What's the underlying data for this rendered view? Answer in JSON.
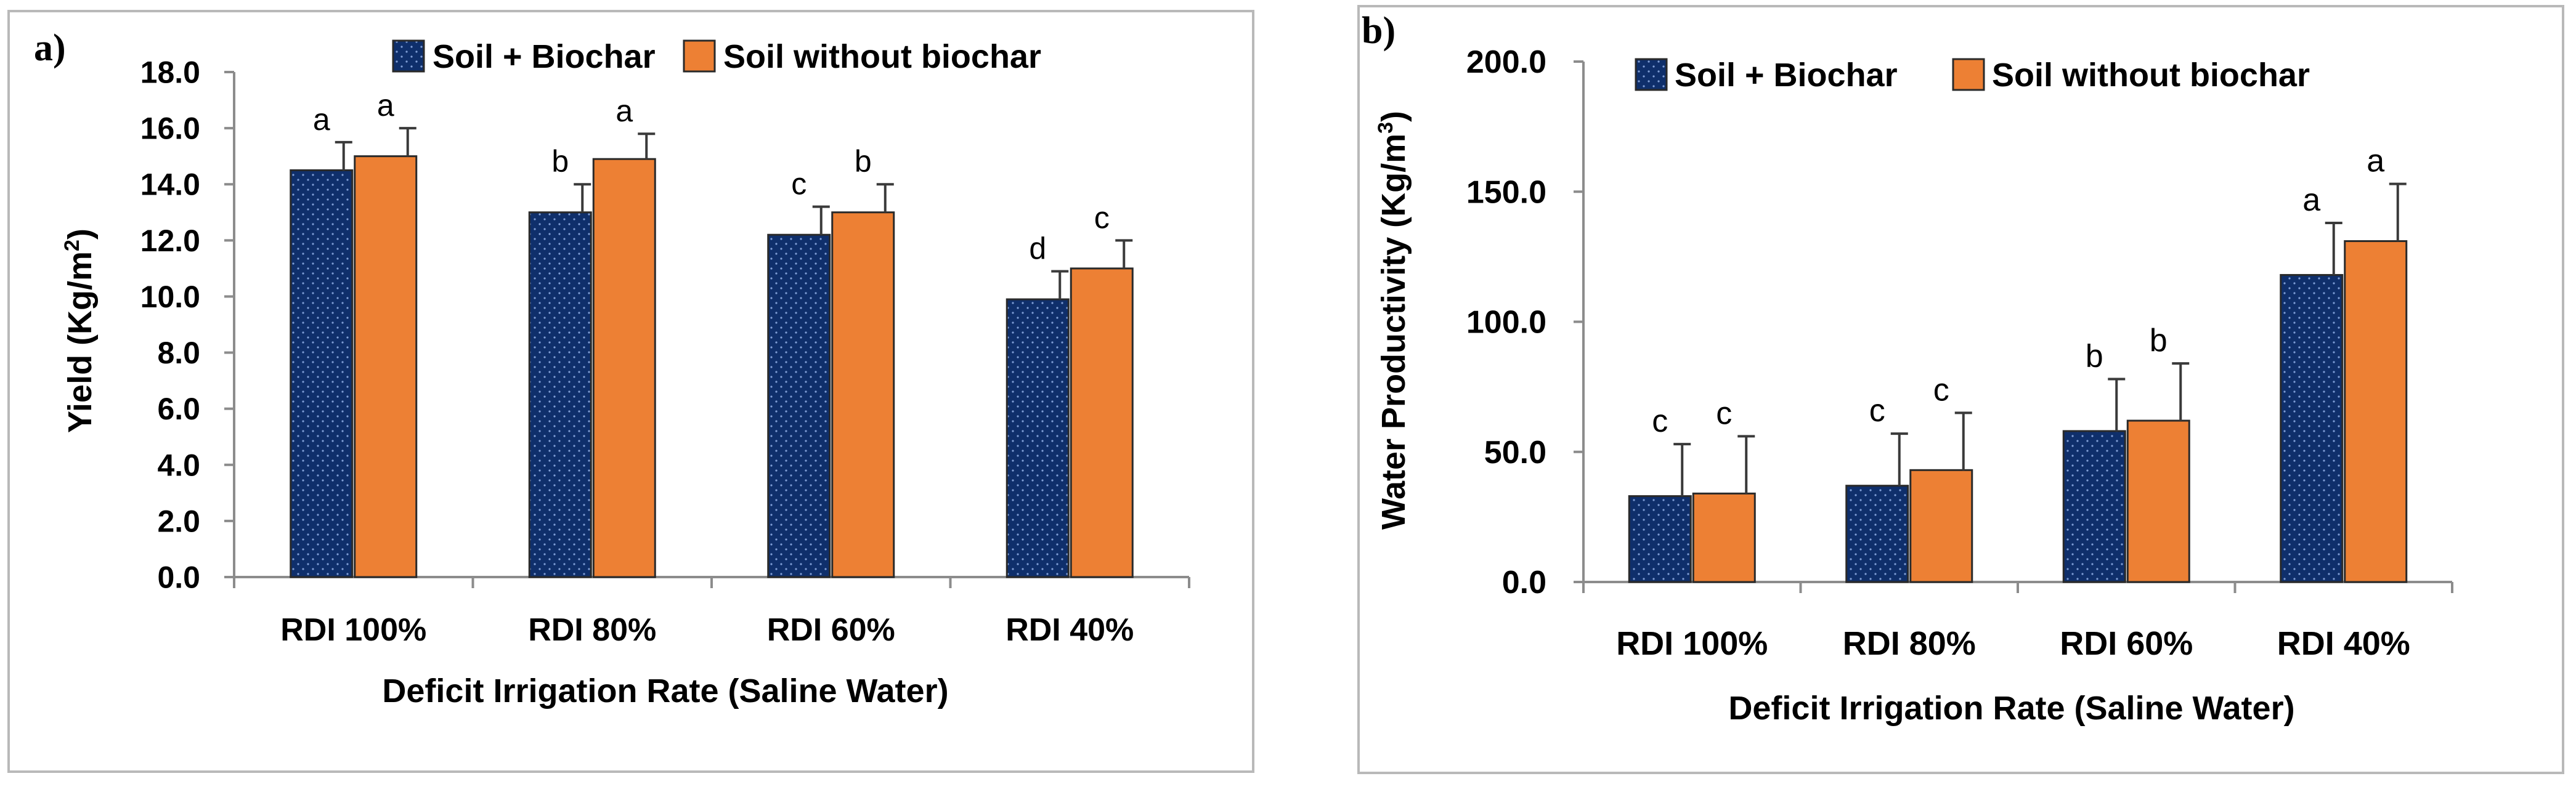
{
  "colors": {
    "soil_biochar": "#0f2f6b",
    "soil_biochar_dots": "#7f9ed6",
    "soil_without": "#ed8034"
  },
  "chart_data": [
    {
      "panel": "a)",
      "type": "bar",
      "title": "",
      "xlabel": "Deficit Irrigation Rate (Saline Water)",
      "ylabel_main": "Yield (Kg/m",
      "ylabel_sup": "2",
      "ylabel_end": ")",
      "ylim": [
        0,
        18
      ],
      "yticks": [
        "0.0",
        "2.0",
        "4.0",
        "6.0",
        "8.0",
        "10.0",
        "12.0",
        "14.0",
        "16.0",
        "18.0"
      ],
      "categories": [
        "RDI 100%",
        "RDI 80%",
        "RDI 60%",
        "RDI 40%"
      ],
      "legend_position": "top-right",
      "series": [
        {
          "name": "Soil + Biochar",
          "values": [
            14.5,
            13.0,
            12.2,
            9.9
          ],
          "errors": [
            1.0,
            1.0,
            1.0,
            1.0
          ],
          "letters": [
            "a",
            "b",
            "c",
            "d"
          ]
        },
        {
          "name": "Soil without biochar",
          "values": [
            15.0,
            14.9,
            13.0,
            11.0
          ],
          "errors": [
            1.0,
            0.9,
            1.0,
            1.0
          ],
          "letters": [
            "a",
            "a",
            "b",
            "c"
          ]
        }
      ]
    },
    {
      "panel": "b)",
      "type": "bar",
      "title": "",
      "xlabel": "Deficit Irrigation Rate (Saline Water)",
      "ylabel_main": "Water Productivity (Kg/m",
      "ylabel_sup": "3",
      "ylabel_end": ")",
      "ylim": [
        0,
        200
      ],
      "yticks": [
        "0.0",
        "50.0",
        "100.0",
        "150.0",
        "200.0"
      ],
      "categories": [
        "RDI 100%",
        "RDI 80%",
        "RDI 60%",
        "RDI 40%"
      ],
      "legend_position": "top",
      "series": [
        {
          "name": "Soil + Biochar",
          "values": [
            33,
            37,
            58,
            118
          ],
          "errors": [
            20,
            20,
            20,
            20
          ],
          "letters": [
            "c",
            "c",
            "b",
            "a"
          ]
        },
        {
          "name": "Soil without biochar",
          "values": [
            34,
            43,
            62,
            131
          ],
          "errors": [
            22,
            22,
            22,
            22
          ],
          "letters": [
            "c",
            "c",
            "b",
            "a"
          ]
        }
      ]
    }
  ]
}
